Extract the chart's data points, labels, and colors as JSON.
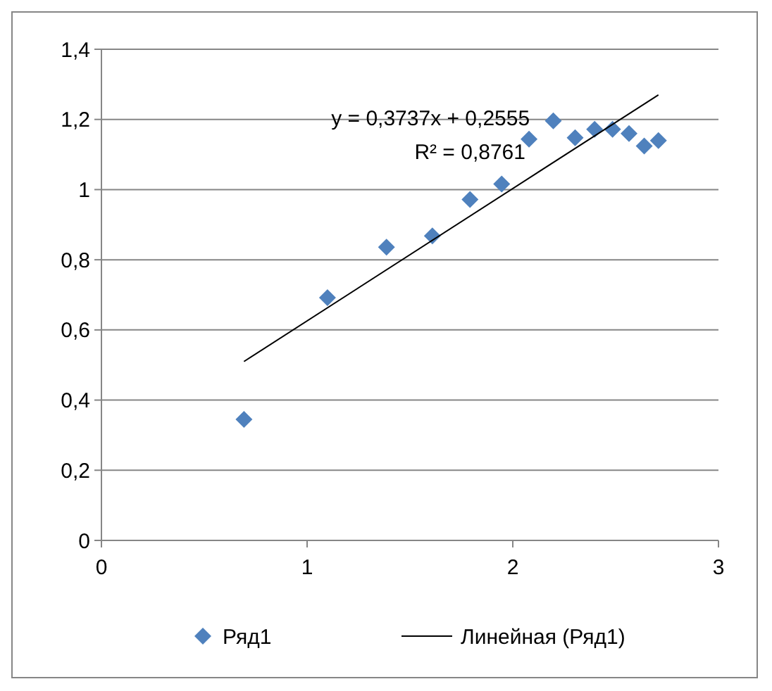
{
  "chart_data": {
    "type": "scatter",
    "xlim": [
      0,
      3
    ],
    "ylim": [
      0,
      1.4
    ],
    "xticks": [
      0,
      1,
      2,
      3
    ],
    "yticks": [
      0,
      {
        "value": 0.2,
        "label": "0,2"
      },
      {
        "value": 0.4,
        "label": "0,4"
      },
      {
        "value": 0.6,
        "label": "0,6"
      },
      {
        "value": 0.8,
        "label": "0,8"
      },
      1,
      {
        "value": 1.2,
        "label": "1,2"
      },
      {
        "value": 1.4,
        "label": "1,4"
      }
    ],
    "grid": "y",
    "legend": "bottom",
    "annotations": [
      "y = 0,3737x + 0,2555",
      "R² = 0,8761"
    ],
    "series": [
      {
        "name": "Ряд1",
        "marker": "diamond",
        "color": "#4f81bd",
        "x": [
          0.693,
          1.099,
          1.386,
          1.609,
          1.792,
          1.946,
          2.079,
          2.197,
          2.303,
          2.398,
          2.485,
          2.565,
          2.639,
          2.708
        ],
        "values": [
          0.345,
          0.692,
          0.836,
          0.868,
          0.972,
          1.016,
          1.144,
          1.196,
          1.148,
          1.172,
          1.172,
          1.16,
          1.124,
          1.14
        ]
      },
      {
        "name": "Линейная (Ряд1)",
        "type": "line",
        "color": "#000000",
        "line_style": "solid",
        "marker": "none",
        "x": [
          0.693,
          2.708
        ],
        "values": [
          0.51,
          1.27
        ]
      }
    ]
  }
}
